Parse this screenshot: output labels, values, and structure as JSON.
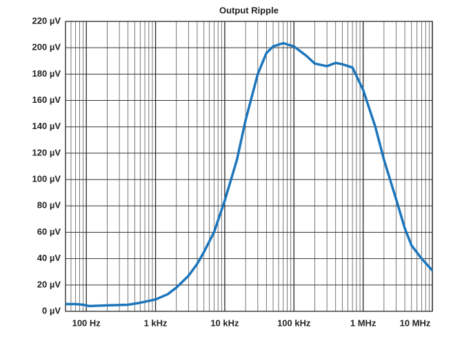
{
  "chart_data": {
    "type": "line",
    "title": "Output Ripple",
    "x": [
      50,
      70,
      90,
      110,
      200,
      400,
      600,
      1000,
      1500,
      2000,
      3000,
      4000,
      5000,
      7000,
      10000,
      15000,
      20000,
      30000,
      40000,
      50000,
      70000,
      100000,
      150000,
      200000,
      300000,
      400000,
      500000,
      700000,
      1000000,
      1500000,
      2000000,
      3000000,
      4000000,
      5000000,
      7000000,
      10000000
    ],
    "series": [
      {
        "name": "Output Ripple",
        "color": "#1b75bc",
        "values": [
          5.5,
          5.5,
          5,
          4,
          4.5,
          5,
          6.5,
          9,
          13,
          18,
          27,
          36,
          45,
          60,
          84,
          115,
          145,
          180,
          196,
          201,
          203.5,
          201,
          194,
          188,
          186,
          188.5,
          187.5,
          185,
          168,
          140,
          115,
          85,
          63,
          50,
          40,
          31
        ]
      }
    ],
    "xlim": [
      50,
      10000000
    ],
    "xscale": "log",
    "xticks": [
      {
        "value": 100,
        "label": "100 Hz"
      },
      {
        "value": 1000,
        "label": "1 kHz"
      },
      {
        "value": 10000,
        "label": "10 kHz"
      },
      {
        "value": 100000,
        "label": "100 kHz"
      },
      {
        "value": 1000000,
        "label": "1 MHz"
      },
      {
        "value": 10000000,
        "label": "10 MHz"
      }
    ],
    "ylim": [
      0,
      220
    ],
    "yticks": [
      {
        "value": 0,
        "label": "0 µV"
      },
      {
        "value": 20,
        "label": "20 µV"
      },
      {
        "value": 40,
        "label": "40 µV"
      },
      {
        "value": 60,
        "label": "60 µV"
      },
      {
        "value": 80,
        "label": "80 µV"
      },
      {
        "value": 100,
        "label": "100 µV"
      },
      {
        "value": 120,
        "label": "120 µV"
      },
      {
        "value": 140,
        "label": "140 µV"
      },
      {
        "value": 160,
        "label": "160 µV"
      },
      {
        "value": 180,
        "label": "180 µV"
      },
      {
        "value": 200,
        "label": "200 µV"
      },
      {
        "value": 220,
        "label": "220 µV"
      }
    ],
    "grid": true,
    "minor_grid": true
  }
}
